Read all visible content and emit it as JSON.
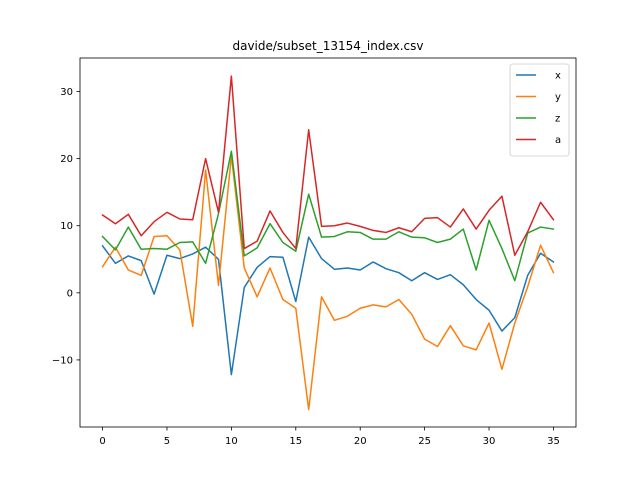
{
  "chart_data": {
    "type": "line",
    "title": "davide/subset_13154_index.csv",
    "xlabel": "",
    "ylabel": "",
    "xlim": [
      -1.75,
      36.75
    ],
    "ylim": [
      -20,
      35
    ],
    "xticks": [
      0,
      5,
      10,
      15,
      20,
      25,
      30,
      35
    ],
    "yticks": [
      -10,
      0,
      10,
      20,
      30
    ],
    "legend_position": "top-right",
    "grid": false,
    "x": [
      0,
      1,
      2,
      3,
      4,
      5,
      6,
      7,
      8,
      9,
      10,
      11,
      12,
      13,
      14,
      15,
      16,
      17,
      18,
      19,
      20,
      21,
      22,
      23,
      24,
      25,
      26,
      27,
      28,
      29,
      30,
      31,
      32,
      33,
      34,
      35
    ],
    "series": [
      {
        "name": "x",
        "color": "#1f77b4",
        "values": [
          7.0,
          4.4,
          5.5,
          4.8,
          -0.2,
          5.6,
          5.1,
          5.8,
          6.8,
          5.0,
          -12.2,
          0.8,
          3.8,
          5.4,
          5.3,
          -1.3,
          8.3,
          5.1,
          3.5,
          3.7,
          3.4,
          4.6,
          3.6,
          3.0,
          1.8,
          3.0,
          2.0,
          2.7,
          1.2,
          -1.0,
          -2.6,
          -5.7,
          -3.7,
          2.6,
          5.9,
          4.6
        ]
      },
      {
        "name": "y",
        "color": "#ff7f0e",
        "values": [
          3.9,
          6.8,
          3.4,
          2.6,
          8.4,
          8.5,
          6.4,
          -5.0,
          18.3,
          1.1,
          20.4,
          3.7,
          -0.6,
          3.7,
          -1.0,
          -2.3,
          -17.4,
          -0.6,
          -4.1,
          -3.5,
          -2.3,
          -1.8,
          -2.1,
          -1.0,
          -3.2,
          -6.9,
          -8.0,
          -4.9,
          -7.9,
          -8.5,
          -4.5,
          -11.4,
          -4.5,
          0.9,
          7.1,
          3.0
        ]
      },
      {
        "name": "z",
        "color": "#2ca02c",
        "values": [
          8.4,
          6.4,
          9.8,
          6.5,
          6.6,
          6.5,
          7.5,
          7.6,
          4.4,
          11.8,
          21.1,
          5.5,
          6.7,
          10.3,
          7.5,
          6.2,
          14.7,
          8.3,
          8.4,
          9.1,
          9.0,
          8.0,
          8.0,
          9.1,
          8.3,
          8.2,
          7.5,
          8.0,
          9.5,
          3.4,
          10.8,
          6.6,
          1.8,
          8.9,
          9.8,
          9.5
        ]
      },
      {
        "name": "a",
        "color": "#d62728",
        "values": [
          11.6,
          10.3,
          11.7,
          8.5,
          10.6,
          12.0,
          11.0,
          10.9,
          20.0,
          12.0,
          32.3,
          6.6,
          7.7,
          12.2,
          9.0,
          6.6,
          24.3,
          9.9,
          10.0,
          10.4,
          9.9,
          9.3,
          9.0,
          9.7,
          9.1,
          11.1,
          11.2,
          9.8,
          12.5,
          9.5,
          12.3,
          14.4,
          5.6,
          9.1,
          13.5,
          10.9
        ]
      }
    ]
  }
}
